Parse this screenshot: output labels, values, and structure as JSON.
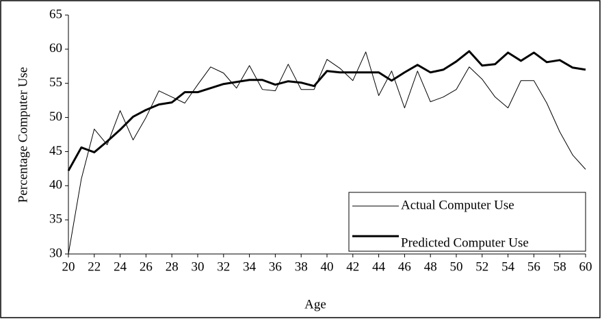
{
  "chart_data": {
    "type": "line",
    "x_label": "Age",
    "y_label": "Percentage Computer Use",
    "x": [
      20,
      21,
      22,
      23,
      24,
      25,
      26,
      27,
      28,
      29,
      30,
      31,
      32,
      33,
      34,
      35,
      36,
      37,
      38,
      39,
      40,
      41,
      42,
      43,
      44,
      45,
      46,
      47,
      48,
      49,
      50,
      51,
      52,
      53,
      54,
      55,
      56,
      57,
      58,
      59,
      60
    ],
    "series": [
      {
        "name": "Actual Computer Use",
        "color": "#000000",
        "width": 1,
        "values": [
          30,
          41,
          48.3,
          46,
          51,
          46.7,
          50,
          53.9,
          53,
          52.1,
          54.8,
          57.4,
          56.5,
          54.3,
          57.6,
          54.1,
          53.9,
          57.8,
          54.1,
          54.1,
          58.5,
          57.2,
          55.4,
          59.6,
          53.2,
          56.8,
          51.4,
          56.8,
          52.3,
          53,
          54.1,
          57.4,
          55.6,
          53,
          51.4,
          55.4,
          55.4,
          52.1,
          47.9,
          44.5,
          42.4
        ]
      },
      {
        "name": "Predicted Computer Use",
        "color": "#000000",
        "width": 3,
        "values": [
          42.2,
          45.6,
          44.9,
          46.5,
          48.2,
          50.1,
          51.1,
          51.9,
          52.2,
          53.7,
          53.7,
          54.3,
          54.9,
          55.2,
          55.5,
          55.5,
          54.8,
          55.3,
          55.1,
          54.6,
          56.8,
          56.6,
          56.6,
          56.6,
          56.6,
          55.4,
          56.6,
          57.7,
          56.6,
          57,
          58.2,
          59.7,
          57.6,
          57.8,
          59.5,
          58.3,
          59.5,
          58.1,
          58.4,
          57.3,
          57
        ]
      }
    ],
    "xlim": [
      20,
      60
    ],
    "xticks": [
      20,
      22,
      24,
      26,
      28,
      30,
      32,
      34,
      36,
      38,
      40,
      42,
      44,
      46,
      48,
      50,
      52,
      54,
      56,
      58,
      60
    ],
    "ylim": [
      30,
      65
    ],
    "yticks": [
      30,
      35,
      40,
      45,
      50,
      55,
      60,
      65
    ],
    "grid": false,
    "legend": "lower right"
  }
}
